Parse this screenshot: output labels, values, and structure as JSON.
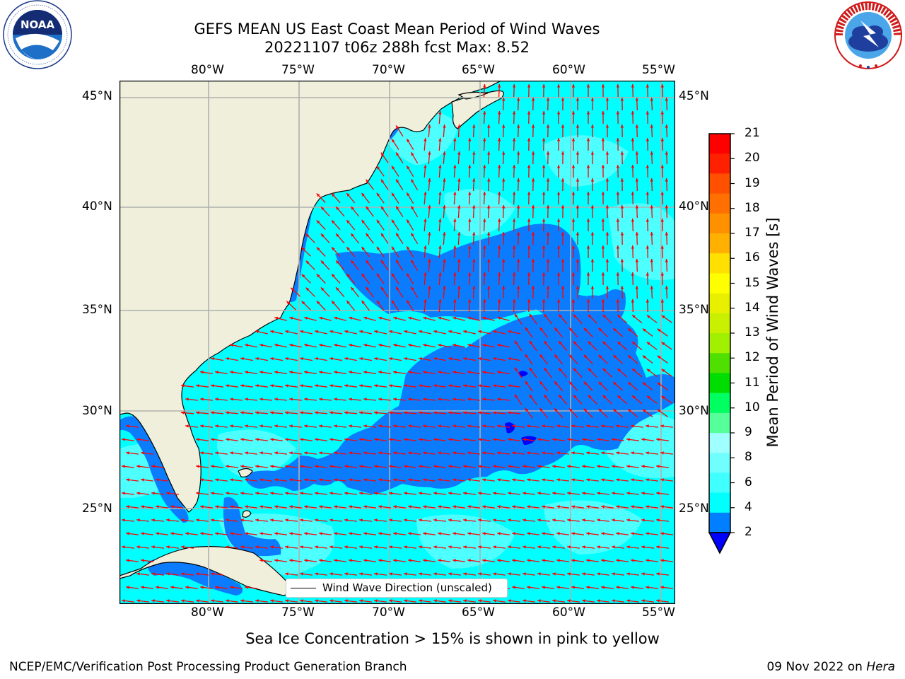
{
  "header": {
    "title_line1": "GEFS MEAN US East Coast Mean Period of Wind Waves",
    "title_line2": "20221107 t06z 288h fcst   Max: 8.52"
  },
  "logos": {
    "noaa": {
      "text": "NOAA",
      "ring_text": "NATIONAL OCEANIC AND ATMOSPHERIC ADMINISTRATION · U.S. DEPARTMENT OF COMMERCE"
    },
    "nws": {
      "ring_text": "NATIONAL WEATHER SERVICE"
    }
  },
  "map": {
    "lon_ticks": [
      "80°W",
      "75°W",
      "70°W",
      "65°W",
      "60°W",
      "55°W"
    ],
    "lat_ticks": [
      "45°N",
      "40°N",
      "35°N",
      "30°N",
      "25°N"
    ],
    "legend_label": "Wind Wave Direction (unscaled)",
    "colors": {
      "land": "#efefdc",
      "ocean_4_6": "#00ffff",
      "ocean_6_8": "#4dffff",
      "ocean_2_4": "#0c7cff",
      "below_2": "#0000ff",
      "arrows": "#ff0000",
      "grid": "#b0b0b0"
    }
  },
  "colorbar": {
    "label": "Mean Period of Wind Waves [s]",
    "ticks": [
      "21",
      "20",
      "19",
      "18",
      "17",
      "16",
      "15",
      "14",
      "13",
      "12",
      "11",
      "10",
      "9",
      "8",
      "6",
      "4",
      "2"
    ],
    "colors": [
      "#ff0000",
      "#ff2000",
      "#ff5000",
      "#ff7000",
      "#ff9000",
      "#ffb000",
      "#ffe000",
      "#ffff00",
      "#e8f000",
      "#c8f000",
      "#a0f000",
      "#50e000",
      "#00dd00",
      "#00ff60",
      "#55ff99",
      "#a0ffff",
      "#70ffff",
      "#40ffff",
      "#00ffff",
      "#007fff"
    ],
    "extend_color": "#0000ff"
  },
  "footer": {
    "sea_ice_note": "Sea Ice Concentration > 15% is shown in pink to yellow",
    "credit": "NCEP/EMC/Verification Post Processing Product Generation Branch",
    "date_text": "09 Nov 2022 on ",
    "machine": "Hera"
  }
}
